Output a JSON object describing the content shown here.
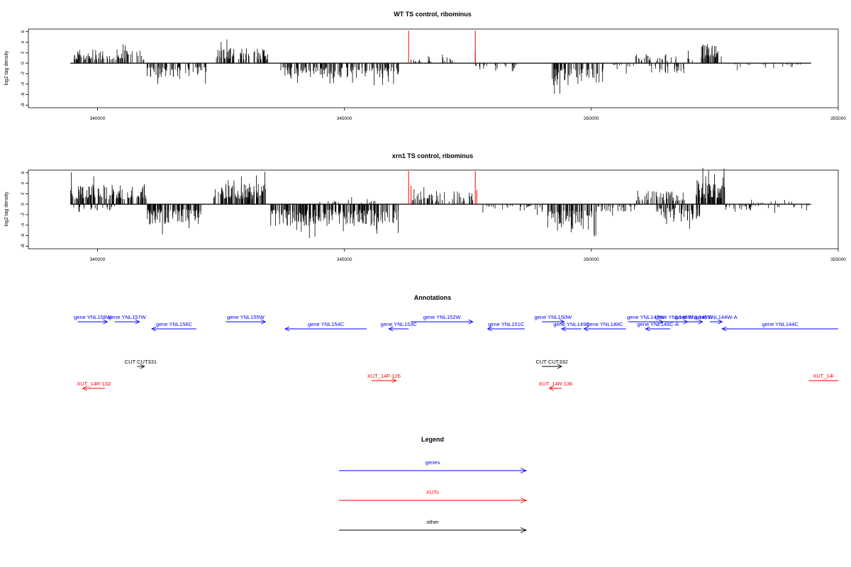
{
  "chart_data": [
    {
      "type": "bar",
      "title": "WT TS control, ribominus",
      "ylabel": "log2 tag density",
      "xlabel": "",
      "xlim": [
        338600,
        355000
      ],
      "ylim": [
        -8.5,
        6.5
      ],
      "x_ticks": [
        340000,
        345000,
        350000,
        355000
      ],
      "y_ticks": [
        6,
        4,
        2,
        0,
        -2,
        -4,
        -6,
        -8
      ],
      "grid": false,
      "baseline_range": [
        339450,
        354450
      ],
      "regions": [
        {
          "start": 339500,
          "end": 340950,
          "sign": 1,
          "amp": 2.6,
          "density": 80,
          "seed": 11
        },
        {
          "start": 341000,
          "end": 342200,
          "sign": -1,
          "amp": 2.8,
          "density": 70,
          "seed": 12
        },
        {
          "start": 342400,
          "end": 343450,
          "sign": 1,
          "amp": 2.9,
          "density": 75,
          "seed": 13
        },
        {
          "start": 343700,
          "end": 346100,
          "sign": -1,
          "amp": 3.0,
          "density": 150,
          "seed": 14
        },
        {
          "start": 346300,
          "end": 347200,
          "sign": 1,
          "amp": 1.2,
          "density": 20,
          "seed": 15
        },
        {
          "start": 347600,
          "end": 348500,
          "sign": -1,
          "amp": 1.6,
          "density": 22,
          "seed": 16
        },
        {
          "start": 349200,
          "end": 350300,
          "sign": -1,
          "amp": 4.2,
          "density": 60,
          "seed": 17
        },
        {
          "start": 350400,
          "end": 350900,
          "sign": -1,
          "amp": 1.3,
          "density": 10,
          "seed": 18
        },
        {
          "start": 350900,
          "end": 352100,
          "sign": 1,
          "amp": 1.8,
          "density": 30,
          "seed": 19
        },
        {
          "start": 351100,
          "end": 351900,
          "sign": -1,
          "amp": 2.0,
          "density": 25,
          "seed": 20
        },
        {
          "start": 352200,
          "end": 352650,
          "sign": 1,
          "amp": 3.6,
          "density": 45,
          "seed": 21
        },
        {
          "start": 352800,
          "end": 354300,
          "sign": -1,
          "amp": 1.0,
          "density": 18,
          "seed": 22
        }
      ],
      "highlights": [
        {
          "x": 346300,
          "y": 6.2
        },
        {
          "x": 347650,
          "y": 6.2
        },
        {
          "x": 347650,
          "y": 2.3
        }
      ]
    },
    {
      "type": "bar",
      "title": "xrn1 TS control, ribominus",
      "ylabel": "log2 tag density",
      "xlabel": "",
      "xlim": [
        338600,
        355000
      ],
      "ylim": [
        -8.5,
        6.5
      ],
      "x_ticks": [
        340000,
        345000,
        350000,
        355000
      ],
      "y_ticks": [
        6,
        4,
        2,
        0,
        -2,
        -4,
        -6,
        -8
      ],
      "grid": false,
      "baseline_range": [
        339450,
        354450
      ],
      "regions": [
        {
          "start": 339450,
          "end": 341000,
          "sign": 1,
          "amp": 3.8,
          "density": 130,
          "seed": 31
        },
        {
          "start": 339500,
          "end": 340400,
          "sign": -1,
          "amp": 1.5,
          "density": 20,
          "seed": 32
        },
        {
          "start": 341000,
          "end": 342100,
          "sign": -1,
          "amp": 4.0,
          "density": 110,
          "seed": 33
        },
        {
          "start": 342350,
          "end": 343400,
          "sign": 1,
          "amp": 4.0,
          "density": 110,
          "seed": 34
        },
        {
          "start": 343500,
          "end": 346100,
          "sign": -1,
          "amp": 4.2,
          "density": 240,
          "seed": 35
        },
        {
          "start": 344500,
          "end": 345800,
          "sign": 1,
          "amp": 1.2,
          "density": 15,
          "seed": 36
        },
        {
          "start": 346300,
          "end": 347600,
          "sign": 1,
          "amp": 2.2,
          "density": 60,
          "seed": 37
        },
        {
          "start": 347700,
          "end": 349100,
          "sign": -1,
          "amp": 1.3,
          "density": 28,
          "seed": 38
        },
        {
          "start": 349100,
          "end": 350100,
          "sign": -1,
          "amp": 5.0,
          "density": 80,
          "seed": 39
        },
        {
          "start": 350100,
          "end": 350900,
          "sign": -1,
          "amp": 1.5,
          "density": 25,
          "seed": 40
        },
        {
          "start": 350900,
          "end": 351900,
          "sign": 1,
          "amp": 2.5,
          "density": 55,
          "seed": 41
        },
        {
          "start": 351300,
          "end": 352200,
          "sign": -1,
          "amp": 3.0,
          "density": 60,
          "seed": 42
        },
        {
          "start": 352100,
          "end": 352700,
          "sign": 1,
          "amp": 4.5,
          "density": 70,
          "seed": 43
        },
        {
          "start": 352700,
          "end": 354400,
          "sign": -1,
          "amp": 1.3,
          "density": 30,
          "seed": 44
        },
        {
          "start": 353100,
          "end": 354200,
          "sign": 1,
          "amp": 1.0,
          "density": 10,
          "seed": 45
        }
      ],
      "highlights": [
        {
          "x": 346300,
          "y": 6.3
        },
        {
          "x": 346350,
          "y": 3.5
        },
        {
          "x": 347650,
          "y": 6.3
        },
        {
          "x": 347680,
          "y": 2.7
        }
      ]
    }
  ],
  "annotations": {
    "title": "Annotations",
    "items": [
      {
        "label": "gene YNL158W",
        "color": "#0000ff",
        "start": 339600,
        "end": 340200,
        "dir": 1,
        "row": 0
      },
      {
        "label": "gene YNL157W",
        "color": "#0000ff",
        "start": 340350,
        "end": 340850,
        "dir": 1,
        "row": 0
      },
      {
        "label": "gene YNL156C",
        "color": "#0000ff",
        "start": 341100,
        "end": 342000,
        "dir": -1,
        "row": 1
      },
      {
        "label": "gene YNL155W",
        "color": "#0000ff",
        "start": 342600,
        "end": 343400,
        "dir": 1,
        "row": 0
      },
      {
        "label": "gene YNL154C",
        "color": "#0000ff",
        "start": 343800,
        "end": 345450,
        "dir": -1,
        "row": 1
      },
      {
        "label": "gene YNL153C",
        "color": "#0000ff",
        "start": 345900,
        "end": 346300,
        "dir": -1,
        "row": 1
      },
      {
        "label": "gene YNL152W",
        "color": "#0000ff",
        "start": 346350,
        "end": 347600,
        "dir": 1,
        "row": 0
      },
      {
        "label": "gene YNL151C",
        "color": "#0000ff",
        "start": 347900,
        "end": 348650,
        "dir": -1,
        "row": 1
      },
      {
        "label": "gene YNL150W",
        "color": "#0000ff",
        "start": 349000,
        "end": 349450,
        "dir": 1,
        "row": 0
      },
      {
        "label": "gene YNL149C",
        "color": "#0000ff",
        "start": 349400,
        "end": 349800,
        "dir": -1,
        "row": 1
      },
      {
        "label": "gene YNL148C",
        "color": "#0000ff",
        "start": 349850,
        "end": 350700,
        "dir": -1,
        "row": 1
      },
      {
        "label": "gene YNL147W",
        "color": "#0000ff",
        "start": 350750,
        "end": 351450,
        "dir": 1,
        "row": 0
      },
      {
        "label": "gene YNL146C-A",
        "color": "#0000ff",
        "start": 351100,
        "end": 351600,
        "dir": -1,
        "row": 1
      },
      {
        "label": "gene YNL146W",
        "color": "#0000ff",
        "start": 351400,
        "end": 351950,
        "dir": 1,
        "row": 0
      },
      {
        "label": "gene YNL145W",
        "color": "#0000ff",
        "start": 351900,
        "end": 352250,
        "dir": 1,
        "row": 0
      },
      {
        "label": "gene YNL144W-A",
        "color": "#0000ff",
        "start": 352400,
        "end": 352650,
        "dir": 1,
        "row": 0
      },
      {
        "label": "gene YNL144C",
        "color": "#0000ff",
        "start": 352650,
        "end": 355050,
        "dir": -1,
        "row": 1
      },
      {
        "label": "CUT CUT331",
        "color": "#000000",
        "start": 340800,
        "end": 340950,
        "dir": 1,
        "row": 2
      },
      {
        "label": "CUT CUT332",
        "color": "#000000",
        "start": 349000,
        "end": 349400,
        "dir": 1,
        "row": 2
      },
      {
        "label": "XUT_14F-126",
        "color": "#ff0000",
        "start": 345550,
        "end": 346050,
        "dir": 1,
        "row": 3
      },
      {
        "label": "XUT_14R-132",
        "color": "#ff0000",
        "start": 339700,
        "end": 340150,
        "dir": -1,
        "row": 4
      },
      {
        "label": "XUT_14R-136",
        "color": "#ff0000",
        "start": 349150,
        "end": 349400,
        "dir": -1,
        "row": 4
      },
      {
        "label": "XUT_14I",
        "color": "#ff0000",
        "start": 354400,
        "end": 355050,
        "dir": 0,
        "row": 3
      }
    ]
  },
  "legend": {
    "title": "Legend",
    "items": [
      {
        "label": "genes",
        "color": "#0000ff"
      },
      {
        "label": "XUTs",
        "color": "#ff0000"
      },
      {
        "label": "other",
        "color": "#000000"
      }
    ]
  }
}
